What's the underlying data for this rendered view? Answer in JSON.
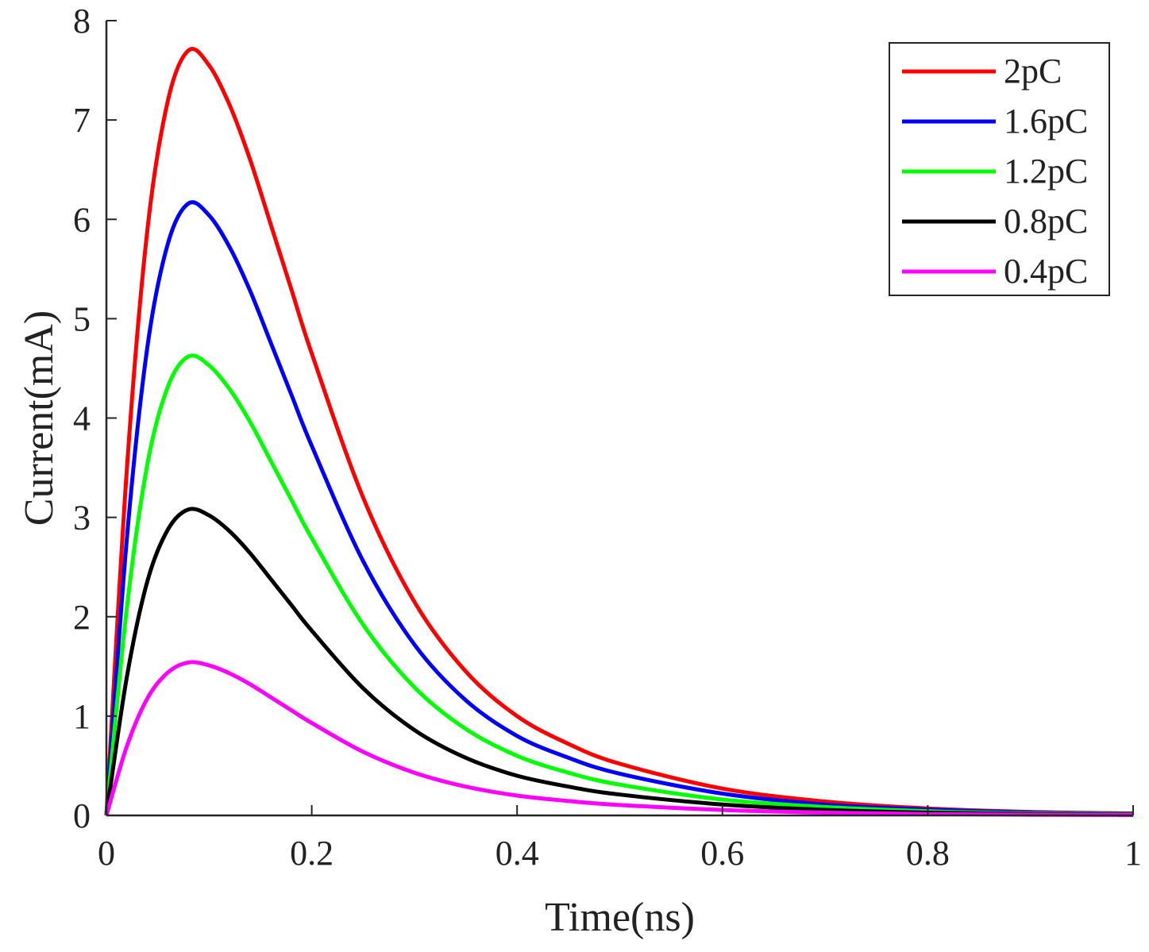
{
  "chart_data": {
    "type": "line",
    "title": "",
    "xlabel": "Time(ns)",
    "ylabel": "Current(mA)",
    "xlim": [
      0,
      1
    ],
    "ylim": [
      0,
      8
    ],
    "xticks": [
      0,
      0.2,
      0.4,
      0.6,
      0.8,
      1
    ],
    "xtick_labels": [
      "0",
      "0.2",
      "0.4",
      "0.6",
      "0.8",
      "1"
    ],
    "yticks": [
      0,
      1,
      2,
      3,
      4,
      5,
      6,
      7,
      8
    ],
    "ytick_labels": [
      "0",
      "1",
      "2",
      "3",
      "4",
      "5",
      "6",
      "7",
      "8"
    ],
    "grid": false,
    "legend_position": "top-right",
    "x": [
      0,
      0.02,
      0.04,
      0.06,
      0.08,
      0.1,
      0.12,
      0.14,
      0.16,
      0.18,
      0.2,
      0.25,
      0.3,
      0.35,
      0.4,
      0.45,
      0.5,
      0.6,
      0.7,
      0.8,
      0.9,
      1.0
    ],
    "series": [
      {
        "name": "2pC",
        "color": "#ff0000",
        "values": [
          0,
          3.5,
          5.9,
          7.2,
          7.7,
          7.55,
          7.15,
          6.6,
          5.95,
          5.3,
          4.65,
          3.2,
          2.15,
          1.45,
          1.0,
          0.72,
          0.52,
          0.27,
          0.14,
          0.07,
          0.035,
          0.02
        ]
      },
      {
        "name": "1.6pC",
        "color": "#0000ff",
        "values": [
          0,
          2.8,
          4.72,
          5.76,
          6.16,
          6.04,
          5.72,
          5.28,
          4.76,
          4.24,
          3.72,
          2.56,
          1.72,
          1.16,
          0.8,
          0.58,
          0.42,
          0.22,
          0.11,
          0.06,
          0.03,
          0.016
        ]
      },
      {
        "name": "1.2pC",
        "color": "#00ff00",
        "values": [
          0,
          2.1,
          3.54,
          4.32,
          4.62,
          4.53,
          4.29,
          3.96,
          3.57,
          3.18,
          2.79,
          1.92,
          1.29,
          0.87,
          0.6,
          0.43,
          0.31,
          0.16,
          0.085,
          0.042,
          0.021,
          0.012
        ]
      },
      {
        "name": "0.8pC",
        "color": "#000000",
        "values": [
          0,
          1.4,
          2.36,
          2.88,
          3.08,
          3.02,
          2.86,
          2.64,
          2.38,
          2.12,
          1.86,
          1.28,
          0.86,
          0.58,
          0.4,
          0.29,
          0.21,
          0.11,
          0.056,
          0.028,
          0.014,
          0.008
        ]
      },
      {
        "name": "0.4pC",
        "color": "#ff00ff",
        "values": [
          0,
          0.7,
          1.18,
          1.44,
          1.54,
          1.51,
          1.43,
          1.32,
          1.19,
          1.06,
          0.93,
          0.64,
          0.43,
          0.29,
          0.2,
          0.145,
          0.105,
          0.055,
          0.028,
          0.014,
          0.007,
          0.004
        ]
      }
    ]
  }
}
